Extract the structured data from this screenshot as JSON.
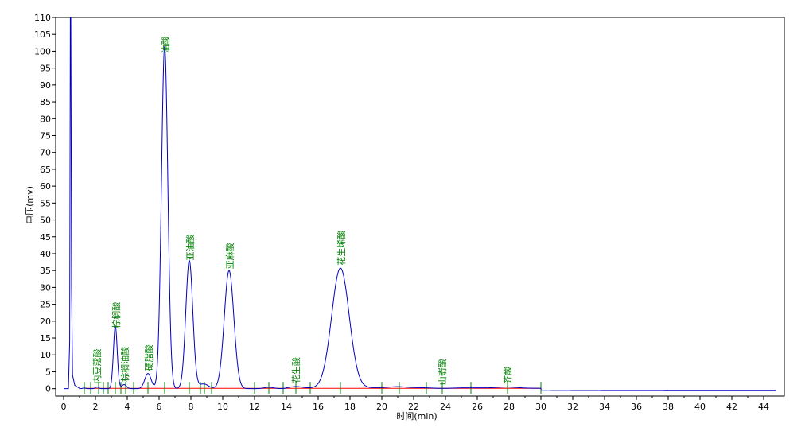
{
  "chart_data": {
    "type": "line",
    "xlabel": "时间(min)",
    "ylabel": "电压(mv)",
    "xlim": [
      -0.5,
      45.3
    ],
    "ylim": [
      -2.2,
      110
    ],
    "x_ticks": [
      0,
      2,
      4,
      6,
      8,
      10,
      12,
      14,
      16,
      18,
      20,
      22,
      24,
      26,
      28,
      30,
      32,
      34,
      36,
      38,
      40,
      42,
      44
    ],
    "y_ticks": [
      0,
      5,
      10,
      15,
      20,
      25,
      30,
      35,
      40,
      45,
      50,
      55,
      60,
      65,
      70,
      75,
      80,
      85,
      90,
      95,
      100,
      105,
      110
    ],
    "series": [
      {
        "color": "#0000c0",
        "injection_spike": {
          "x": 0.45,
          "y": 110
        },
        "peaks": [
          {
            "x": 1.3,
            "y": 0.2,
            "width": 0.1
          },
          {
            "x": 2.1,
            "y": 0.5,
            "width": 0.1
          },
          {
            "x": 3.25,
            "y": 18.5,
            "width": 0.12
          },
          {
            "x": 3.8,
            "y": 1.2,
            "width": 0.15
          },
          {
            "x": 5.3,
            "y": 4.5,
            "width": 0.2
          },
          {
            "x": 6.35,
            "y": 101.5,
            "width": 0.2
          },
          {
            "x": 7.9,
            "y": 38.0,
            "width": 0.22
          },
          {
            "x": 8.8,
            "y": 1.4,
            "width": 0.3
          },
          {
            "x": 10.4,
            "y": 35.0,
            "width": 0.3
          },
          {
            "x": 12.9,
            "y": 0.4,
            "width": 0.3
          },
          {
            "x": 14.6,
            "y": 0.5,
            "width": 0.4
          },
          {
            "x": 17.4,
            "y": 35.5,
            "width": 0.55
          },
          {
            "x": 21.0,
            "y": 0.3,
            "width": 0.5
          },
          {
            "x": 23.8,
            "y": -0.2,
            "width": 0.6
          },
          {
            "x": 27.9,
            "y": 0.3,
            "width": 0.6
          }
        ]
      }
    ],
    "baseline_segments": [
      [
        1.3,
        2.1
      ],
      [
        2.1,
        2.5
      ],
      [
        2.5,
        3.6
      ],
      [
        3.6,
        4.4
      ],
      [
        4.4,
        5.9
      ],
      [
        5.9,
        7.0
      ],
      [
        7.0,
        8.6
      ],
      [
        8.6,
        9.3
      ],
      [
        9.3,
        12.0
      ],
      [
        12.0,
        13.8
      ],
      [
        13.8,
        15.5
      ],
      [
        15.5,
        20.0
      ],
      [
        20.0,
        22.8
      ],
      [
        22.8,
        25.5
      ],
      [
        25.5,
        26.0
      ],
      [
        26.0,
        30.0
      ]
    ],
    "peak_markers": [
      1.3,
      1.7,
      2.2,
      2.5,
      2.8,
      3.25,
      3.6,
      3.9,
      4.4,
      5.3,
      6.35,
      7.9,
      8.6,
      8.85,
      9.3,
      12.0,
      12.9,
      13.8,
      14.6,
      15.5,
      17.4,
      20.0,
      21.1,
      22.8,
      23.8,
      25.6,
      27.9,
      30.0
    ],
    "annotations": [
      {
        "text": "内豆蔻酸",
        "x": 2.1
      },
      {
        "text": "棕榈酸",
        "x": 3.3
      },
      {
        "text": "棕榈油酸",
        "x": 3.85
      },
      {
        "text": "硬脂酸",
        "x": 5.35
      },
      {
        "text": "油酸",
        "x": 6.4
      },
      {
        "text": "亚油酸",
        "x": 7.95
      },
      {
        "text": "亚麻酸",
        "x": 10.45
      },
      {
        "text": "花生酸",
        "x": 14.6
      },
      {
        "text": "花生烯酸",
        "x": 17.45
      },
      {
        "text": "山嵛酸",
        "x": 23.8
      },
      {
        "text": "芥酸",
        "x": 27.9
      }
    ]
  }
}
